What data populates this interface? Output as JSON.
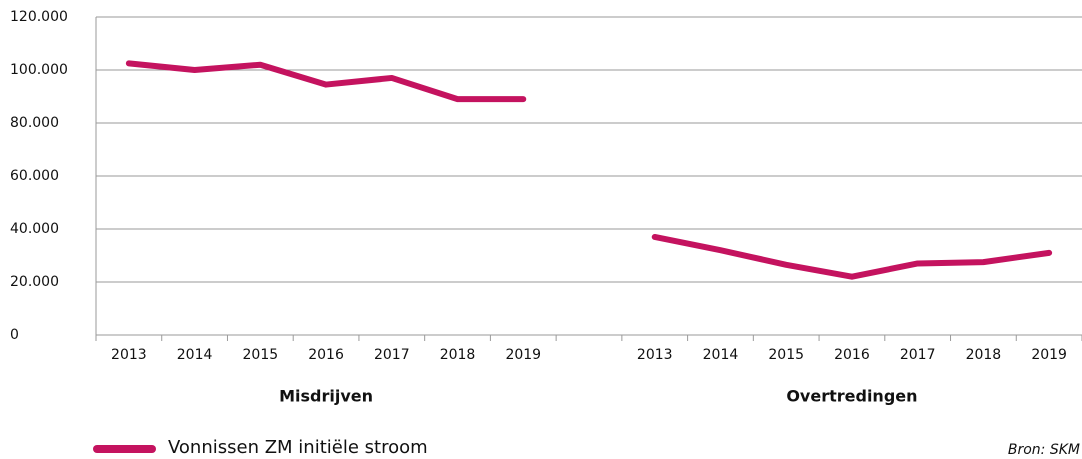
{
  "chart_data": {
    "type": "line",
    "categories": [
      "2013",
      "2014",
      "2015",
      "2016",
      "2017",
      "2018",
      "2019",
      null,
      "2013",
      "2014",
      "2015",
      "2016",
      "2017",
      "2018",
      "2019"
    ],
    "series": [
      {
        "name": "Vonnissen ZM initiële stroom",
        "color": "#c4135f",
        "values": [
          102500,
          100000,
          102000,
          94500,
          97000,
          89000,
          89000,
          null,
          37000,
          32000,
          26500,
          22000,
          27000,
          27500,
          31000
        ]
      }
    ],
    "group_labels": [
      "Misdrijven",
      "Overtredingen"
    ],
    "source": "Bron: SKM",
    "ylim": [
      0,
      120000
    ],
    "yticks": [
      0,
      {
        "value": 20000,
        "label": "20.000"
      },
      {
        "value": 40000,
        "label": "40.000"
      },
      {
        "value": 60000,
        "label": "60.000"
      },
      {
        "value": 80000,
        "label": "80.000"
      },
      {
        "value": 100000,
        "label": "100.000"
      },
      {
        "value": 120000,
        "label": "120.000"
      }
    ],
    "grid": true
  }
}
